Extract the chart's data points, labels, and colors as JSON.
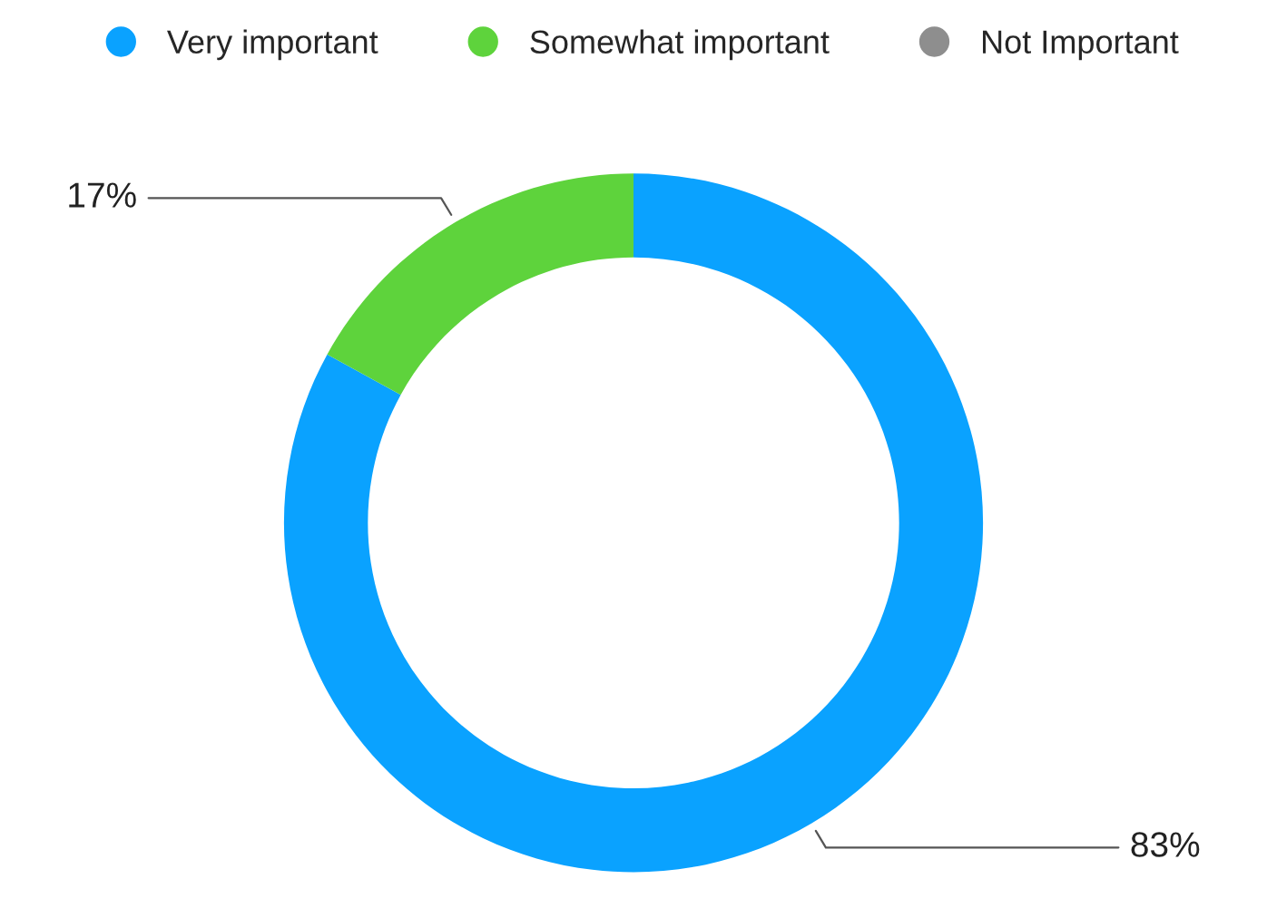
{
  "chart_data": {
    "type": "donut",
    "categories": [
      "Very important",
      "Somewhat important",
      "Not Important"
    ],
    "values": [
      83,
      17,
      0
    ],
    "colors": [
      "#0aa2ff",
      "#5ed33c",
      "#8e8e8e"
    ],
    "value_labels": [
      "83%",
      "17%",
      null
    ],
    "legend": "top"
  }
}
